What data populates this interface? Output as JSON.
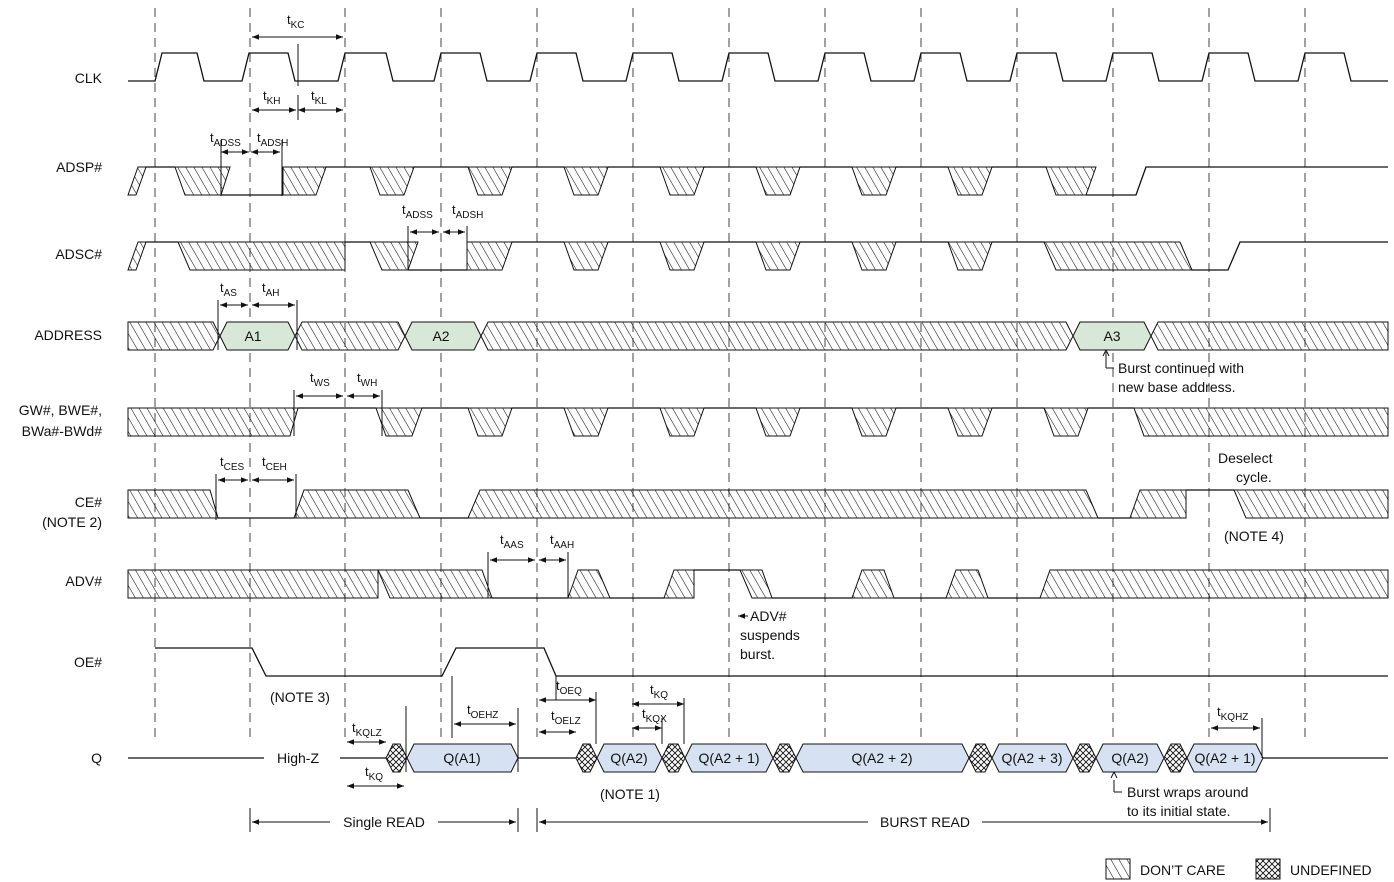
{
  "signals": {
    "clk": "CLK",
    "adsp": "ADSP#",
    "adsc": "ADSC#",
    "address": "ADDRESS",
    "gw_1": "GW#, BWE#,",
    "gw_2": "BWa#-BWd#",
    "ce": "CE#",
    "ce_note": "(NOTE 2)",
    "adv": "ADV#",
    "oe": "OE#",
    "q": "Q"
  },
  "address_values": {
    "a1": "A1",
    "a2": "A2",
    "a3": "A3"
  },
  "q_values": {
    "high_z": "High-Z",
    "qa1": "Q(A1)",
    "qa2": "Q(A2)",
    "qa2p1": "Q(A2 + 1)",
    "qa2p2": "Q(A2 + 2)",
    "qa2p3": "Q(A2 + 3)",
    "qa2b": "Q(A2)",
    "qa2p1b": "Q(A2 + 1)"
  },
  "timing": {
    "kc": {
      "sym": "t",
      "sub": "KC"
    },
    "kh": {
      "sym": "t",
      "sub": "KH"
    },
    "kl": {
      "sym": "t",
      "sub": "KL"
    },
    "adss1": {
      "sym": "t",
      "sub": "ADSS"
    },
    "adsh1": {
      "sym": "t",
      "sub": "ADSH"
    },
    "adss2": {
      "sym": "t",
      "sub": "ADSS"
    },
    "adsh2": {
      "sym": "t",
      "sub": "ADSH"
    },
    "as": {
      "sym": "t",
      "sub": "AS"
    },
    "ah": {
      "sym": "t",
      "sub": "AH"
    },
    "ws": {
      "sym": "t",
      "sub": "WS"
    },
    "wh": {
      "sym": "t",
      "sub": "WH"
    },
    "ces": {
      "sym": "t",
      "sub": "CES"
    },
    "ceh": {
      "sym": "t",
      "sub": "CEH"
    },
    "aas": {
      "sym": "t",
      "sub": "AAS"
    },
    "aah": {
      "sym": "t",
      "sub": "AAH"
    },
    "oehz": {
      "sym": "t",
      "sub": "OEHZ"
    },
    "kqlz": {
      "sym": "t",
      "sub": "KQLZ"
    },
    "kq1": {
      "sym": "t",
      "sub": "KQ"
    },
    "oeq": {
      "sym": "t",
      "sub": "OEQ"
    },
    "oelz": {
      "sym": "t",
      "sub": "OELZ"
    },
    "kq2": {
      "sym": "t",
      "sub": "KQ"
    },
    "kqx": {
      "sym": "t",
      "sub": "KQX"
    },
    "kqhz": {
      "sym": "t",
      "sub": "KQHZ"
    }
  },
  "notes": {
    "burst_cont_1": "Burst continued with",
    "burst_cont_2": "new base address.",
    "deselect_1": "Deselect",
    "deselect_2": "cycle.",
    "note4": "(NOTE 4)",
    "adv_1": "ADV#",
    "adv_2": "suspends",
    "adv_3": "burst.",
    "note3": "(NOTE 3)",
    "note1": "(NOTE 1)",
    "wrap_1": "Burst wraps around",
    "wrap_2": "to its initial state.",
    "single_read": "Single READ",
    "burst_read": "BURST READ"
  },
  "legend": {
    "dont_care": "DON’T CARE",
    "undefined": "UNDEFINED"
  },
  "colors": {
    "bus_fill_addr": "#d8e8d8",
    "bus_fill_q": "#d6e2f2",
    "line": "#111111"
  }
}
